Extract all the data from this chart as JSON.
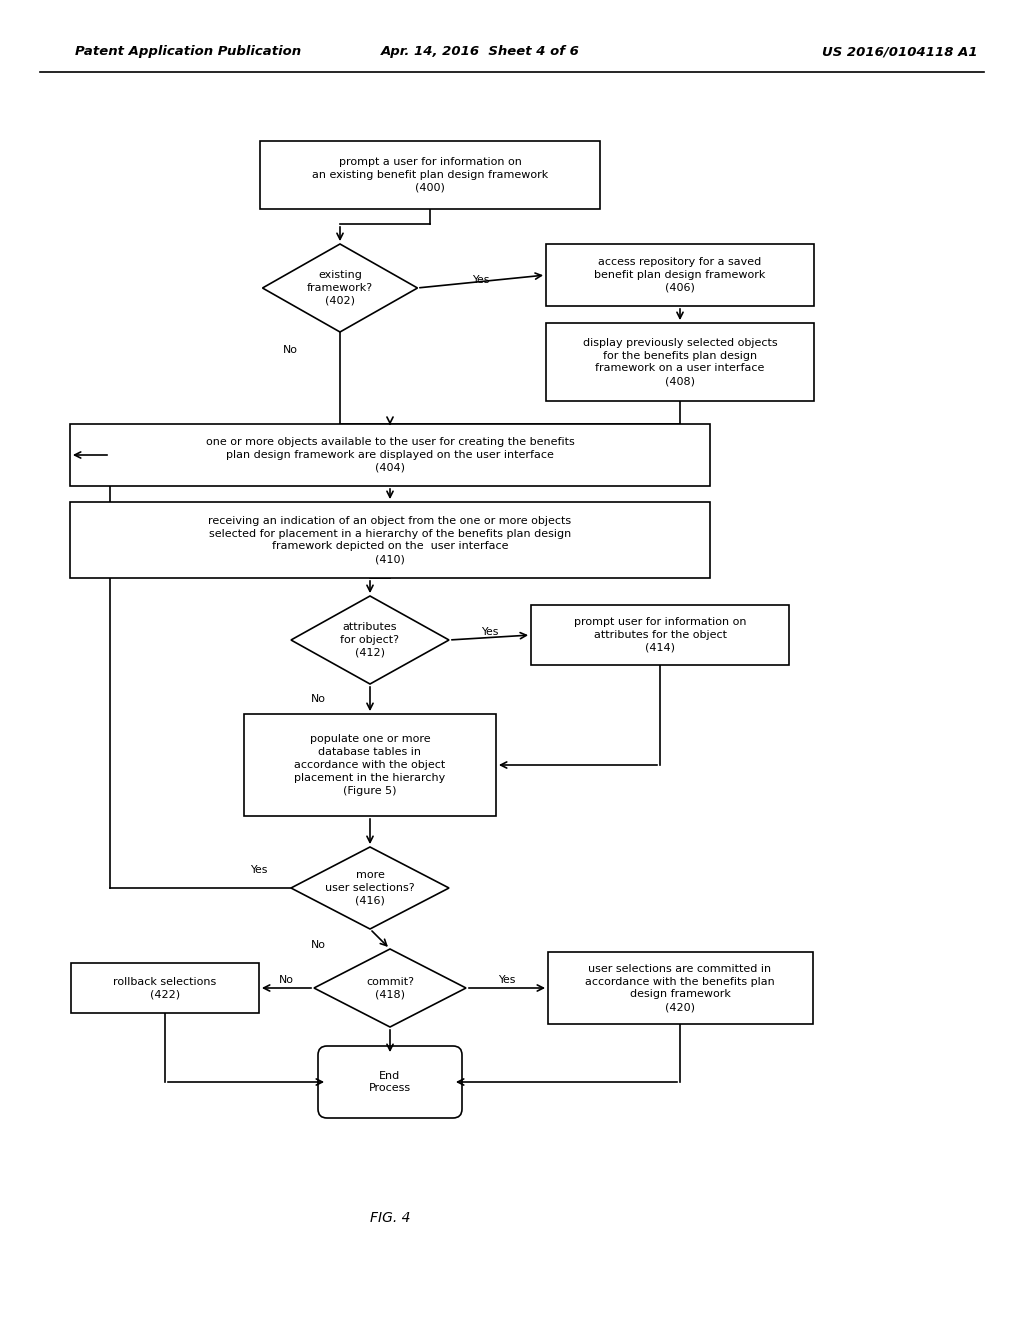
{
  "header_left": "Patent Application Publication",
  "header_mid": "Apr. 14, 2016  Sheet 4 of 6",
  "header_right": "US 2016/0104118 A1",
  "fig_label": "FIG. 4",
  "bg": "#ffffff"
}
